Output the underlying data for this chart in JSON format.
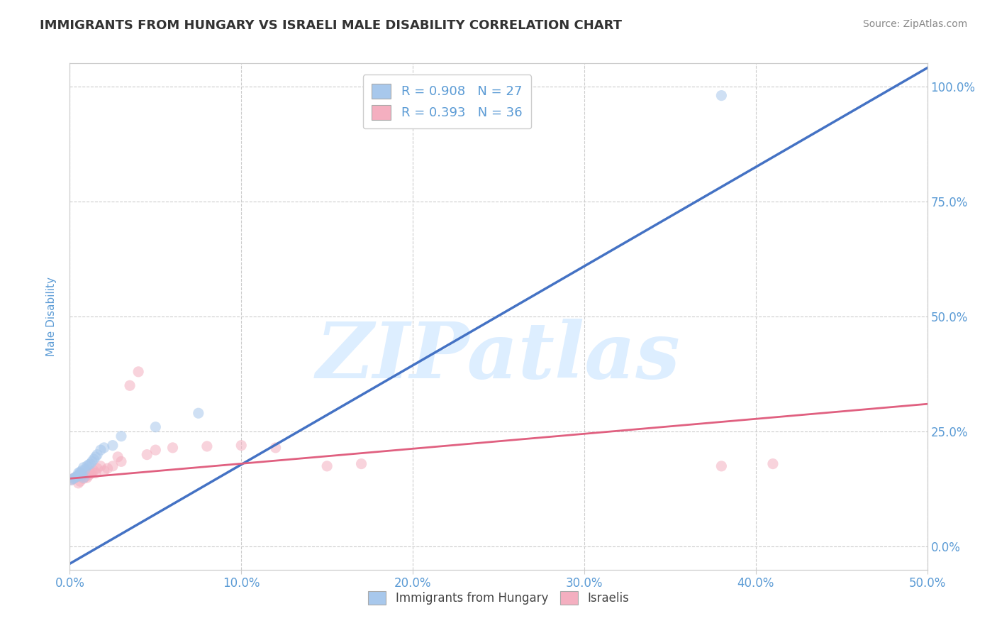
{
  "title": "IMMIGRANTS FROM HUNGARY VS ISRAELI MALE DISABILITY CORRELATION CHART",
  "source_text": "Source: ZipAtlas.com",
  "xlabel_ticks": [
    "0.0%",
    "10.0%",
    "20.0%",
    "30.0%",
    "40.0%",
    "50.0%"
  ],
  "ylabel_ticks_right": [
    "0.0%",
    "25.0%",
    "50.0%",
    "75.0%",
    "100.0%"
  ],
  "xlim": [
    0.0,
    0.5
  ],
  "ylim": [
    -0.05,
    1.05
  ],
  "ylabel": "Male Disability",
  "legend_entries": [
    {
      "label": "R = 0.908   N = 27",
      "color": "#a8c8ec"
    },
    {
      "label": "R = 0.393   N = 36",
      "color": "#f4afc0"
    }
  ],
  "legend_bottom_labels": [
    "Immigrants from Hungary",
    "Israelis"
  ],
  "blue_scatter_x": [
    0.001,
    0.002,
    0.003,
    0.004,
    0.005,
    0.005,
    0.006,
    0.006,
    0.007,
    0.007,
    0.008,
    0.008,
    0.009,
    0.01,
    0.011,
    0.012,
    0.013,
    0.014,
    0.015,
    0.016,
    0.018,
    0.02,
    0.025,
    0.03,
    0.05,
    0.075,
    0.38
  ],
  "blue_scatter_y": [
    0.145,
    0.148,
    0.15,
    0.152,
    0.155,
    0.16,
    0.158,
    0.162,
    0.155,
    0.165,
    0.15,
    0.172,
    0.168,
    0.175,
    0.178,
    0.18,
    0.185,
    0.19,
    0.195,
    0.2,
    0.21,
    0.215,
    0.22,
    0.24,
    0.26,
    0.29,
    0.98
  ],
  "pink_scatter_x": [
    0.001,
    0.002,
    0.003,
    0.004,
    0.005,
    0.005,
    0.006,
    0.007,
    0.007,
    0.008,
    0.009,
    0.01,
    0.011,
    0.012,
    0.013,
    0.014,
    0.015,
    0.016,
    0.018,
    0.02,
    0.022,
    0.025,
    0.028,
    0.03,
    0.035,
    0.04,
    0.045,
    0.05,
    0.06,
    0.08,
    0.1,
    0.12,
    0.15,
    0.17,
    0.38,
    0.41
  ],
  "pink_scatter_y": [
    0.145,
    0.148,
    0.15,
    0.152,
    0.155,
    0.138,
    0.142,
    0.155,
    0.16,
    0.148,
    0.152,
    0.15,
    0.155,
    0.158,
    0.162,
    0.165,
    0.16,
    0.17,
    0.175,
    0.165,
    0.17,
    0.175,
    0.195,
    0.185,
    0.35,
    0.38,
    0.2,
    0.21,
    0.215,
    0.218,
    0.22,
    0.215,
    0.175,
    0.18,
    0.175,
    0.18
  ],
  "blue_line_x": [
    -0.02,
    0.5
  ],
  "blue_line_y": [
    -0.08,
    1.04
  ],
  "pink_line_x": [
    0.0,
    0.5
  ],
  "pink_line_y": [
    0.148,
    0.31
  ],
  "scatter_alpha": 0.55,
  "scatter_size": 120,
  "blue_color": "#a8c8ec",
  "pink_color": "#f4afc0",
  "blue_line_color": "#4472c4",
  "pink_line_color": "#e06080",
  "background_color": "#ffffff",
  "grid_color": "#cccccc",
  "watermark_text": "ZIPatlas",
  "watermark_color": "#ddeeff",
  "title_color": "#333333",
  "axis_label_color": "#5b9bd5",
  "tick_label_color": "#5b9bd5",
  "ytick_vals": [
    0.0,
    0.25,
    0.5,
    0.75,
    1.0
  ],
  "xtick_vals": [
    0.0,
    0.1,
    0.2,
    0.3,
    0.4,
    0.5
  ]
}
